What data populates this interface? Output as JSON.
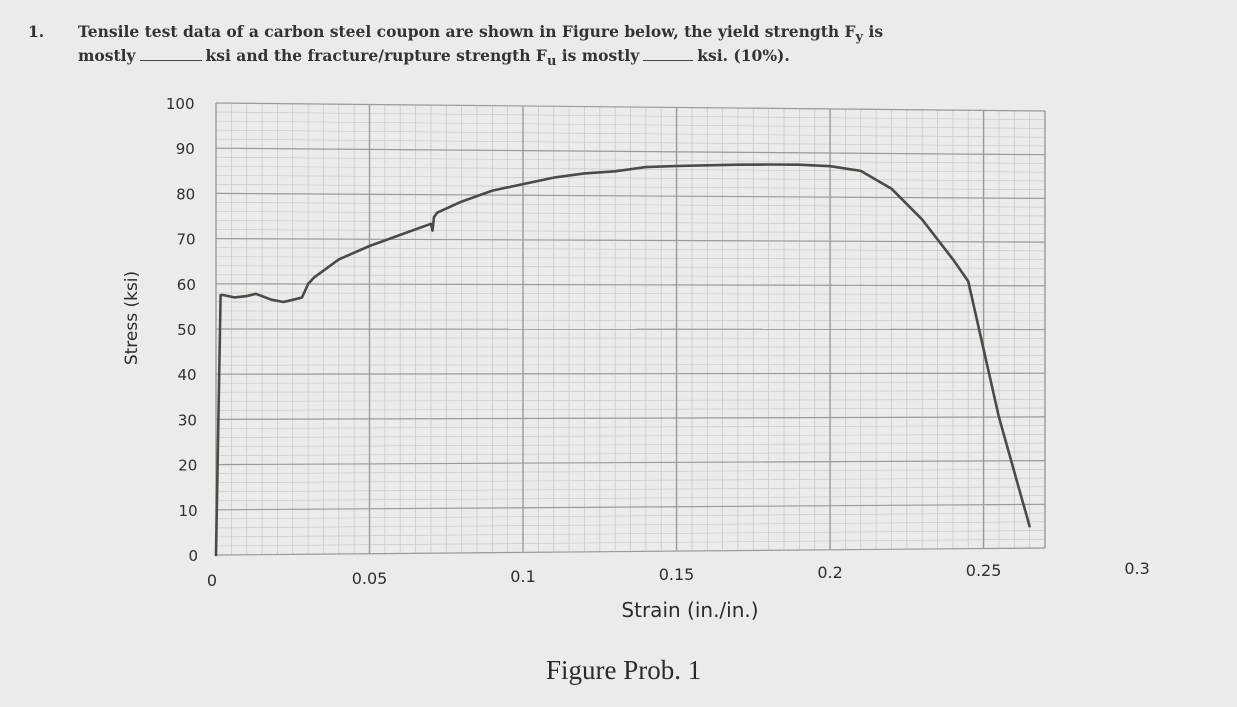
{
  "problem": {
    "number": "1.",
    "line1": "Tensile test data of a carbon steel coupon are shown in Figure below, the yield strength F",
    "line1_sub": "y",
    "line1_tail": " is",
    "line2_a": "mostly",
    "line2_b": "ksi and the fracture/rupture strength F",
    "line2_sub": "u",
    "line2_c": " is mostly",
    "line2_d": "ksi. (10%)."
  },
  "caption": "Figure  Prob. 1",
  "colors": {
    "curve": "#4a4a4a",
    "grid_major": "#9a9a9a",
    "grid_minor": "#c9c9c9",
    "paper": "#ecebe7"
  },
  "chart_data": {
    "type": "line",
    "xlabel": "Strain (in./in.)",
    "ylabel": "Stress (ksi)",
    "xlim": [
      0,
      0.3
    ],
    "ylim": [
      0,
      100
    ],
    "x_ticks": [
      "0",
      "0.05",
      "0.1",
      "0.15",
      "0.2",
      "0.25",
      "0.3"
    ],
    "y_ticks": [
      "0",
      "10",
      "20",
      "30",
      "40",
      "50",
      "60",
      "70",
      "80",
      "90",
      "100"
    ],
    "grid": true,
    "series": [
      {
        "x": [
          0,
          0.0015,
          0.0025,
          0.006,
          0.01,
          0.013,
          0.018,
          0.022,
          0.025,
          0.028,
          0.03,
          0.032,
          0.04,
          0.05,
          0.06,
          0.07,
          0.0705,
          0.071,
          0.072,
          0.08,
          0.09,
          0.1,
          0.11,
          0.12,
          0.13,
          0.14,
          0.15,
          0.16,
          0.17,
          0.18,
          0.19,
          0.2,
          0.21,
          0.22,
          0.23,
          0.24,
          0.245,
          0.255,
          0.265
        ],
        "y": [
          0,
          57.5,
          57.5,
          57,
          57.3,
          57.8,
          56.5,
          56,
          56.5,
          57,
          60,
          61.5,
          65.5,
          68.5,
          71,
          73.5,
          72,
          75,
          76,
          78.5,
          81,
          82.5,
          84,
          85,
          85.5,
          86.5,
          86.8,
          87,
          87.2,
          87.3,
          87.3,
          87,
          86,
          82,
          75,
          66,
          61,
          30,
          5
        ]
      }
    ]
  }
}
